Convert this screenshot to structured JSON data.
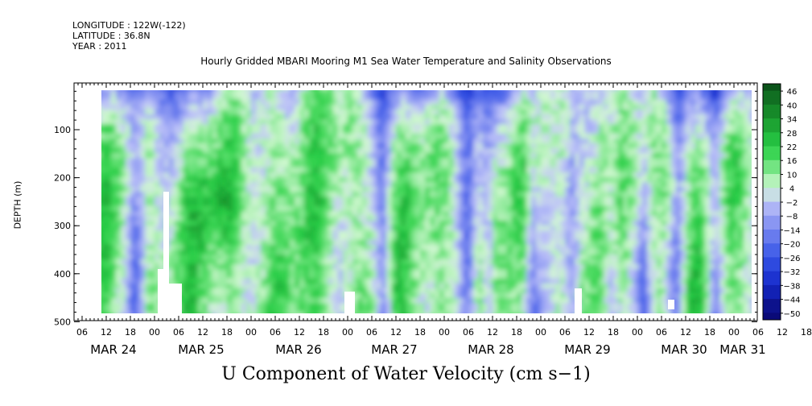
{
  "header": {
    "longitude": "LONGITUDE : 122W(-122)",
    "latitude": "LATITUDE : 36.8N",
    "year": "YEAR : 2011"
  },
  "chart_data": {
    "type": "heatmap",
    "title": "Hourly Gridded MBARI Mooring M1 Sea Water Temperature and Salinity Observations",
    "xlabel": "U Component of Water Velocity (cm s−1)",
    "ylabel": "DEPTH (m)",
    "y_ticks": [
      100,
      200,
      300,
      400,
      500
    ],
    "ylim": [
      500,
      0
    ],
    "y_inverted": true,
    "x_hour_ticks": [
      "06",
      "12",
      "18",
      "00",
      "06",
      "12",
      "18",
      "00",
      "06",
      "12",
      "18",
      "00",
      "06",
      "12",
      "18",
      "00",
      "06",
      "12",
      "18",
      "00",
      "06",
      "12",
      "18",
      "00",
      "06",
      "12",
      "18",
      "00",
      "06",
      "12",
      "18",
      "00"
    ],
    "x_date_labels": [
      "MAR 24",
      "MAR 25",
      "MAR 26",
      "MAR 27",
      "MAR 28",
      "MAR 29",
      "MAR 30",
      "MAR 31"
    ],
    "colorbar_levels": [
      "46",
      "40",
      "34",
      "28",
      "22",
      "16",
      "10",
      "4",
      "−2",
      "−8",
      "−14",
      "−20",
      "−26",
      "−32",
      "−38",
      "−44",
      "−50"
    ],
    "colorbar_range": [
      -50,
      50
    ],
    "data_range": {
      "depth_min": 20,
      "depth_max": 488
    },
    "colors": {
      "strong_negative": "#0a0a78",
      "negative": "#3a50e0",
      "weak_negative": "#a0a8f0",
      "weak_positive": "#b8f0c0",
      "positive": "#30d848",
      "strong_positive": "#106a20"
    }
  }
}
